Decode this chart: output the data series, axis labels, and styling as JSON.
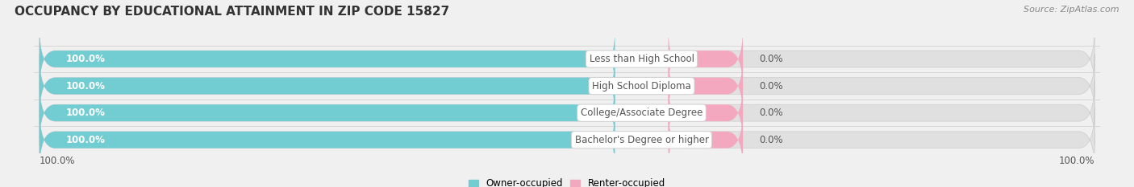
{
  "title": "OCCUPANCY BY EDUCATIONAL ATTAINMENT IN ZIP CODE 15827",
  "source": "Source: ZipAtlas.com",
  "categories": [
    "Less than High School",
    "High School Diploma",
    "College/Associate Degree",
    "Bachelor's Degree or higher"
  ],
  "owner_values": [
    100.0,
    100.0,
    100.0,
    100.0
  ],
  "renter_values": [
    0.0,
    0.0,
    0.0,
    0.0
  ],
  "owner_color": "#72cdd2",
  "renter_color": "#f4a8c0",
  "bar_bg_color": "#e0e0e0",
  "owner_label": "Owner-occupied",
  "renter_label": "Renter-occupied",
  "title_fontsize": 11,
  "source_fontsize": 8,
  "background_color": "#f0f0f0",
  "bar_height": 0.62,
  "bottom_left_label": "100.0%",
  "bottom_right_label": "100.0%",
  "owner_text_color": "#ffffff",
  "value_text_color": "#555555",
  "label_text_color": "#555555",
  "title_color": "#333333",
  "source_color": "#888888"
}
